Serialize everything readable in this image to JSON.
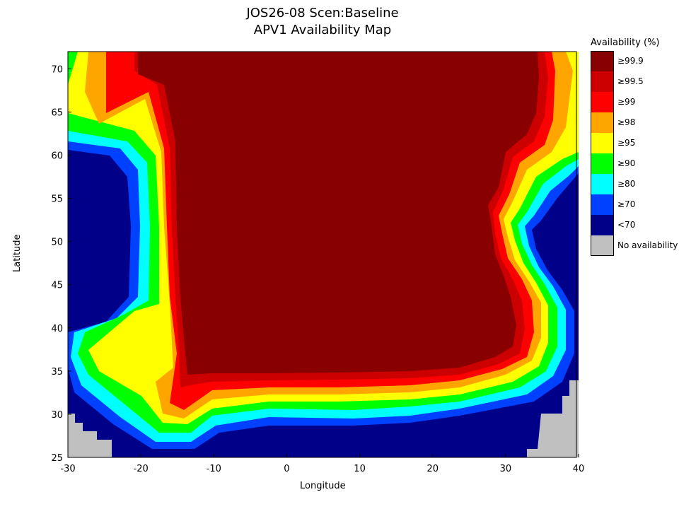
{
  "chart_data": {
    "type": "heatmap",
    "title": "JOS26-08 Scen:Baseline",
    "subtitle": "APV1 Availability Map",
    "xlabel": "Longitude",
    "ylabel": "Latitude",
    "xlim": [
      -30,
      40
    ],
    "ylim": [
      25,
      72
    ],
    "xticks": [
      -30,
      -20,
      -10,
      0,
      10,
      20,
      30,
      40
    ],
    "yticks": [
      25,
      30,
      35,
      40,
      45,
      50,
      55,
      60,
      65,
      70
    ],
    "legend": {
      "title": "Availability (%)",
      "placement": "right",
      "entries": [
        {
          "label": "≥99.9",
          "color": "#880000"
        },
        {
          "label": "≥99.5",
          "color": "#cc0000"
        },
        {
          "label": "≥99",
          "color": "#ff0000"
        },
        {
          "label": "≥98",
          "color": "#ffa500"
        },
        {
          "label": "≥95",
          "color": "#ffff00"
        },
        {
          "label": "≥90",
          "color": "#00ff00"
        },
        {
          "label": "≥80",
          "color": "#00ffff"
        },
        {
          "label": "≥70",
          "color": "#0040ff"
        },
        {
          "label": "<70",
          "color": "#000088"
        },
        {
          "label": "No availability",
          "color": "#c0c0c0"
        }
      ]
    }
  }
}
